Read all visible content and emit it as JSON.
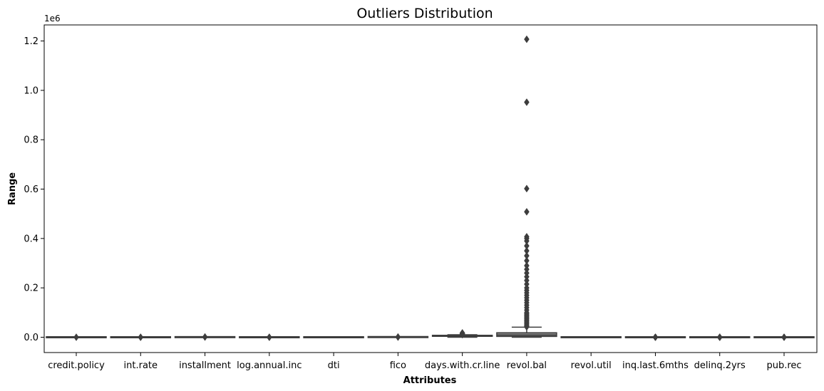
{
  "chart_data": {
    "type": "box",
    "title": "Outliers Distribution",
    "xlabel": "Attributes",
    "ylabel": "Range",
    "y_offset_text": "1e6",
    "ylim": [
      -62000,
      1265000
    ],
    "yticks": [
      0.0,
      0.2,
      0.4,
      0.6,
      0.8,
      1.0,
      1.2
    ],
    "ytick_labels": [
      "0.0",
      "0.2",
      "0.4",
      "0.6",
      "0.8",
      "1.0",
      "1.2"
    ],
    "ytick_scale": 1000000,
    "categories": [
      "credit.policy",
      "int.rate",
      "installment",
      "log.annual.inc",
      "dti",
      "fico",
      "days.with.cr.line",
      "revol.bal",
      "revol.util",
      "inq.last.6mths",
      "delinq.2yrs",
      "pub.rec"
    ],
    "colors": [
      "#3274a1",
      "#e1812c",
      "#3a923a",
      "#c03d3e",
      "#9372b2",
      "#845b53",
      "#d684bd",
      "#7f7f7f",
      "#a9aa35",
      "#2eb0c0",
      "#3274a1",
      "#e1812c"
    ],
    "boxes": [
      {
        "q1": 1,
        "median": 1,
        "q3": 1,
        "whislo": 1,
        "whishi": 1,
        "fliers": [
          0
        ]
      },
      {
        "q1": 0.1,
        "median": 0.12,
        "q3": 0.14,
        "whislo": 0.06,
        "whishi": 0.2,
        "fliers": [
          0.2,
          0.21
        ]
      },
      {
        "q1": 164,
        "median": 269,
        "q3": 433,
        "whislo": 16,
        "whishi": 836,
        "fliers": [
          900,
          940
        ]
      },
      {
        "q1": 10.6,
        "median": 10.9,
        "q3": 11.3,
        "whislo": 9.6,
        "whishi": 12.3,
        "fliers": [
          7.5,
          14.5
        ]
      },
      {
        "q1": 7,
        "median": 12.7,
        "q3": 17.9,
        "whislo": 0,
        "whishi": 30,
        "fliers": []
      },
      {
        "q1": 682,
        "median": 707,
        "q3": 737,
        "whislo": 612,
        "whishi": 817,
        "fliers": [
          822,
          827
        ]
      },
      {
        "q1": 2820,
        "median": 4140,
        "q3": 5730,
        "whislo": 180,
        "whishi": 10080,
        "fliers": [
          10500,
          12000,
          13500,
          15000,
          16500,
          17600
        ]
      },
      {
        "q1": 3200,
        "median": 8600,
        "q3": 18200,
        "whislo": 0,
        "whishi": 40700,
        "fliers": [
          1207000,
          952000,
          602000,
          508000,
          407000,
          400000,
          390000,
          370000,
          350000,
          330000,
          310000,
          290000,
          275000,
          260000,
          245000,
          230000,
          215000,
          200000,
          190000,
          180000,
          170000,
          160000,
          150000,
          140000,
          130000,
          120000,
          110000,
          100000,
          95000,
          90000,
          85000,
          80000,
          75000,
          70000,
          65000,
          60000,
          55000,
          50000,
          45000,
          42000
        ]
      },
      {
        "q1": 22.6,
        "median": 46.3,
        "q3": 70.9,
        "whislo": 0,
        "whishi": 119,
        "fliers": []
      },
      {
        "q1": 0,
        "median": 1,
        "q3": 2,
        "whislo": 0,
        "whishi": 5,
        "fliers": [
          6,
          8,
          10,
          15,
          20,
          25,
          33
        ]
      },
      {
        "q1": 0,
        "median": 0,
        "q3": 0,
        "whislo": 0,
        "whishi": 0,
        "fliers": [
          1,
          2,
          5,
          8,
          13
        ]
      },
      {
        "q1": 0,
        "median": 0,
        "q3": 0,
        "whislo": 0,
        "whishi": 0,
        "fliers": [
          1,
          3,
          5
        ]
      }
    ]
  }
}
